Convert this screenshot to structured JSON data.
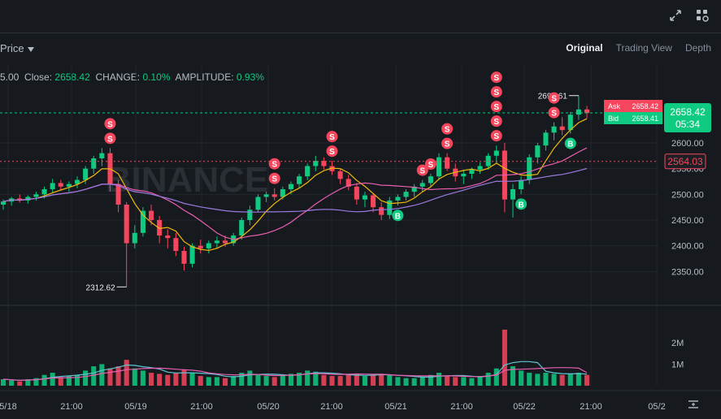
{
  "toolbar": {
    "price_dropdown": "Price",
    "tabs": [
      "Original",
      "Trading View",
      "Depth"
    ],
    "active_tab": "Original",
    "icons": [
      "expand-icon",
      "grid-settings-icon"
    ]
  },
  "ohlc": {
    "open_partial": "5.00",
    "close_label": "Close:",
    "close_value": "2658.42",
    "change_label": "CHANGE:",
    "change_value": "0.10%",
    "amplitude_label": "AMPLITUDE:",
    "amplitude_value": "0.93%"
  },
  "colors": {
    "up": "#0ecb81",
    "down": "#f6465d",
    "ma_yellow": "#f0b90b",
    "ma_pink": "#e95fb0",
    "ma_purple": "#9b7ae0",
    "vol_ma_cyan": "#5ec5d4",
    "vol_ma_pink": "#e95fb0",
    "background": "#161a1e",
    "grid": "#22272e"
  },
  "chart_data": {
    "type": "candlestick",
    "price_axis": {
      "ticks": [
        "2350.00",
        "2400.00",
        "2450.00",
        "2500.00",
        "2550.00",
        "2600.00"
      ],
      "ylim": [
        2300,
        2720
      ]
    },
    "volume_axis": {
      "ticks": [
        "1M",
        "2M"
      ],
      "ylim": [
        0,
        3200000
      ]
    },
    "x_ticks": [
      "5/18",
      "21:00",
      "05/19",
      "21:00",
      "05/20",
      "21:00",
      "05/21",
      "21:00",
      "05/22",
      "21:00",
      "05/2"
    ],
    "last_price": "2658.42",
    "countdown": "05:34",
    "ask": {
      "label": "Ask",
      "value": "2658.42"
    },
    "bid": {
      "label": "Bid",
      "value": "2658.41"
    },
    "alert_price": "2564.03",
    "high_label": "2692.61",
    "low_label": "2312.62",
    "watermark": "BINANCE",
    "candles": [
      [
        2480,
        2490,
        2470,
        2486
      ],
      [
        2486,
        2495,
        2478,
        2492
      ],
      [
        2492,
        2500,
        2484,
        2488
      ],
      [
        2488,
        2498,
        2482,
        2495
      ],
      [
        2495,
        2505,
        2488,
        2500
      ],
      [
        2500,
        2515,
        2492,
        2510
      ],
      [
        2510,
        2530,
        2502,
        2522
      ],
      [
        2522,
        2528,
        2508,
        2515
      ],
      [
        2515,
        2525,
        2505,
        2520
      ],
      [
        2520,
        2535,
        2512,
        2528
      ],
      [
        2528,
        2555,
        2520,
        2550
      ],
      [
        2550,
        2575,
        2540,
        2570
      ],
      [
        2570,
        2590,
        2555,
        2580
      ],
      [
        2580,
        2590,
        2505,
        2520
      ],
      [
        2520,
        2528,
        2465,
        2480
      ],
      [
        2480,
        2485,
        2320,
        2405
      ],
      [
        2405,
        2440,
        2395,
        2425
      ],
      [
        2425,
        2475,
        2418,
        2468
      ],
      [
        2468,
        2480,
        2440,
        2450
      ],
      [
        2450,
        2458,
        2405,
        2420
      ],
      [
        2420,
        2432,
        2395,
        2415
      ],
      [
        2415,
        2425,
        2380,
        2390
      ],
      [
        2390,
        2398,
        2352,
        2365
      ],
      [
        2365,
        2405,
        2358,
        2400
      ],
      [
        2400,
        2412,
        2385,
        2395
      ],
      [
        2395,
        2410,
        2385,
        2405
      ],
      [
        2405,
        2418,
        2395,
        2410
      ],
      [
        2410,
        2420,
        2398,
        2405
      ],
      [
        2405,
        2425,
        2400,
        2420
      ],
      [
        2420,
        2455,
        2412,
        2450
      ],
      [
        2450,
        2478,
        2440,
        2470
      ],
      [
        2470,
        2500,
        2465,
        2495
      ],
      [
        2495,
        2505,
        2485,
        2500
      ],
      [
        2500,
        2512,
        2488,
        2495
      ],
      [
        2495,
        2515,
        2490,
        2510
      ],
      [
        2510,
        2525,
        2500,
        2520
      ],
      [
        2520,
        2540,
        2512,
        2535
      ],
      [
        2535,
        2560,
        2528,
        2555
      ],
      [
        2555,
        2575,
        2545,
        2565
      ],
      [
        2565,
        2572,
        2548,
        2555
      ],
      [
        2555,
        2565,
        2538,
        2545
      ],
      [
        2545,
        2550,
        2520,
        2530
      ],
      [
        2530,
        2538,
        2508,
        2515
      ],
      [
        2515,
        2522,
        2480,
        2490
      ],
      [
        2490,
        2505,
        2475,
        2498
      ],
      [
        2498,
        2502,
        2465,
        2475
      ],
      [
        2475,
        2485,
        2450,
        2460
      ],
      [
        2460,
        2495,
        2452,
        2488
      ],
      [
        2488,
        2500,
        2478,
        2495
      ],
      [
        2495,
        2510,
        2488,
        2505
      ],
      [
        2505,
        2520,
        2495,
        2515
      ],
      [
        2515,
        2528,
        2505,
        2522
      ],
      [
        2522,
        2540,
        2515,
        2535
      ],
      [
        2535,
        2580,
        2528,
        2572
      ],
      [
        2572,
        2580,
        2545,
        2550
      ],
      [
        2550,
        2560,
        2525,
        2535
      ],
      [
        2535,
        2548,
        2520,
        2540
      ],
      [
        2540,
        2552,
        2530,
        2548
      ],
      [
        2548,
        2562,
        2540,
        2555
      ],
      [
        2555,
        2580,
        2548,
        2575
      ],
      [
        2575,
        2595,
        2560,
        2585
      ],
      [
        2585,
        2600,
        2465,
        2490
      ],
      [
        2490,
        2520,
        2455,
        2510
      ],
      [
        2510,
        2535,
        2500,
        2528
      ],
      [
        2528,
        2578,
        2520,
        2572
      ],
      [
        2572,
        2600,
        2560,
        2595
      ],
      [
        2595,
        2625,
        2585,
        2620
      ],
      [
        2620,
        2640,
        2605,
        2632
      ],
      [
        2632,
        2650,
        2615,
        2625
      ],
      [
        2625,
        2660,
        2618,
        2655
      ],
      [
        2655,
        2692,
        2645,
        2665
      ],
      [
        2665,
        2672,
        2648,
        2658
      ]
    ],
    "volumes": [
      0.3,
      0.25,
      0.2,
      0.3,
      0.35,
      0.5,
      0.6,
      0.4,
      0.45,
      0.5,
      0.7,
      0.9,
      1.0,
      0.8,
      0.9,
      1.2,
      0.8,
      0.7,
      0.6,
      0.55,
      0.5,
      0.6,
      0.75,
      0.6,
      0.45,
      0.4,
      0.4,
      0.35,
      0.45,
      0.6,
      0.7,
      0.5,
      0.45,
      0.4,
      0.5,
      0.55,
      0.6,
      0.7,
      0.65,
      0.5,
      0.45,
      0.45,
      0.5,
      0.55,
      0.45,
      0.5,
      0.55,
      0.5,
      0.4,
      0.35,
      0.35,
      0.4,
      0.5,
      0.6,
      0.45,
      0.4,
      0.4,
      0.35,
      0.45,
      0.6,
      0.8,
      2.6,
      0.9,
      0.7,
      0.6,
      0.55,
      0.6,
      0.55,
      0.5,
      0.55,
      0.6,
      0.5
    ]
  }
}
